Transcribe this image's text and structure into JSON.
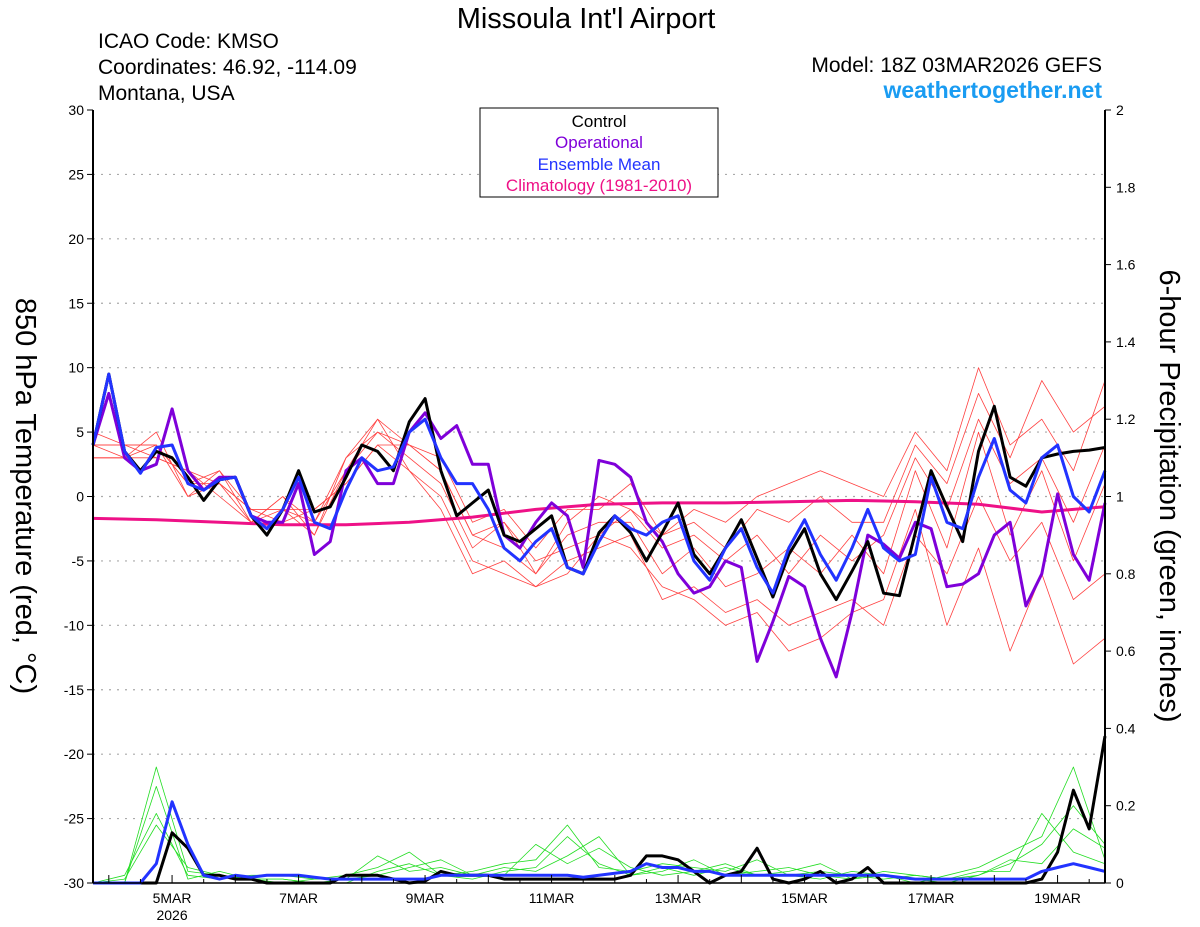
{
  "header": {
    "title": "Missoula Int'l Airport",
    "icao": "ICAO Code: KMSO",
    "coords": "Coordinates: 46.92, -114.09",
    "region": "Montana, USA",
    "model": "Model: 18Z 03MAR2026 GEFS",
    "site": "weathertogether.net"
  },
  "colors": {
    "control": "#000000",
    "operational": "#7f00d9",
    "mean": "#2233ff",
    "climatology": "#ee1187",
    "members_temp": "#ff4040",
    "members_precip": "#22dd22",
    "site": "#1a9cf2"
  },
  "chart_data": {
    "type": "line",
    "title": "Missoula Int'l Airport",
    "ylabel": "850 hPa Temperature (red, °C)",
    "ylabel_right": "6-hour Precipitation (green, inches)",
    "ylim": [
      -30,
      30
    ],
    "ylim_right": [
      0,
      2
    ],
    "yticks": [
      "30",
      "25",
      "20",
      "15",
      "10",
      "5",
      "0",
      "-5",
      "-10",
      "-15",
      "-20",
      "-25",
      "-30"
    ],
    "yticks_right": [
      "2",
      "1.8",
      "1.6",
      "1.4",
      "1.2",
      "1",
      "0.8",
      "0.6",
      "0.4",
      "0.2",
      "0"
    ],
    "x_start_hours_after_03MAR_00Z": 18,
    "x_range_hours": [
      18,
      402
    ],
    "xticks": [
      {
        "label": "5MAR",
        "hour": 48,
        "sub": "2026"
      },
      {
        "label": "7MAR",
        "hour": 96
      },
      {
        "label": "9MAR",
        "hour": 144
      },
      {
        "label": "11MAR",
        "hour": 192
      },
      {
        "label": "13MAR",
        "hour": 240
      },
      {
        "label": "15MAR",
        "hour": 288
      },
      {
        "label": "17MAR",
        "hour": 336
      },
      {
        "label": "19MAR",
        "hour": 384
      }
    ],
    "legend": {
      "placement": "top-center",
      "entries": [
        "Control",
        "Operational",
        "Ensemble Mean",
        "Climatology (1981-2010)"
      ]
    },
    "temperature_series": [
      {
        "name": "Control",
        "step_hours": 6,
        "values": [
          4,
          9.5,
          3.5,
          2,
          3.5,
          3,
          1.5,
          -0.3,
          1.3,
          1.5,
          -1.5,
          -3,
          -1,
          2,
          -1.2,
          -0.8,
          1.5,
          4,
          3.5,
          2,
          5.8,
          7.6,
          2,
          -1.5,
          -0.5,
          0.5,
          -3,
          -3.5,
          -2.5,
          -1.5,
          -5.5,
          -6,
          -2.8,
          -1.5,
          -2.8,
          -5,
          -2.8,
          -0.5,
          -4.5,
          -6,
          -4,
          -1.8,
          -4.8,
          -7.8,
          -4.5,
          -2.5,
          -6,
          -8,
          -5.8,
          -3.5,
          -7.5,
          -7.7,
          -2.8,
          2,
          -0.8,
          -3.5,
          3.5,
          7,
          1.5,
          0.8,
          3,
          3.3,
          3.5,
          3.6,
          3.8
        ]
      },
      {
        "name": "Operational",
        "step_hours": 6,
        "values": [
          4,
          8,
          3,
          2,
          2.5,
          6.8,
          2,
          0.5,
          1.5,
          1.5,
          -1.5,
          -2,
          -2,
          1,
          -4.5,
          -3.5,
          2,
          3,
          1,
          1,
          5,
          6.5,
          4.5,
          5.5,
          2.5,
          2.5,
          -3,
          -4,
          -2,
          -0.5,
          -1.5,
          -5.5,
          2.8,
          2.5,
          1.5,
          -2,
          -3.5,
          -6,
          -7.5,
          -7,
          -5,
          -5.5,
          -12.8,
          -9.7,
          -6.2,
          -7,
          -11,
          -14,
          -9,
          -3,
          -3.7,
          -4.8,
          -2,
          -2.5,
          -7,
          -6.8,
          -6,
          -3,
          -2,
          -8.5,
          -6,
          0.2,
          -4.5,
          -6.5,
          -0.5
        ]
      },
      {
        "name": "Ensemble Mean",
        "step_hours": 6,
        "values": [
          4,
          9.5,
          3.5,
          1.8,
          3.8,
          4,
          1,
          0.5,
          1.3,
          1.5,
          -1.5,
          -2.5,
          -1,
          1.5,
          -2,
          -2.5,
          0.5,
          3,
          2,
          2.3,
          5,
          6,
          3,
          1,
          1,
          -1,
          -4,
          -5,
          -3.5,
          -2.5,
          -5.5,
          -6,
          -3.5,
          -1.5,
          -2.5,
          -3,
          -2,
          -1.5,
          -5,
          -6.5,
          -4,
          -2.5,
          -5.5,
          -7.5,
          -4,
          -1.8,
          -4.5,
          -6.5,
          -4,
          -1,
          -4,
          -5,
          -4.5,
          1.5,
          -2,
          -2.5,
          1.5,
          4.5,
          0.5,
          -0.5,
          3,
          4,
          0,
          -1.2,
          2
        ]
      },
      {
        "name": "Climatology (1981-2010)",
        "step_hours": 24,
        "values": [
          -1.7,
          -1.8,
          -2,
          -2.2,
          -2.2,
          -2,
          -1.6,
          -1,
          -0.6,
          -0.5,
          -0.5,
          -0.4,
          -0.3,
          -0.4,
          -0.6,
          -1.2,
          -0.8
        ]
      }
    ],
    "temperature_members": [
      {
        "name": "member-1",
        "step_hours": 12,
        "values": [
          5,
          4,
          3,
          2,
          0,
          -2,
          0,
          -3,
          3,
          6,
          4,
          2,
          -3,
          -2,
          -6,
          -2,
          0,
          -1,
          -3,
          -2,
          -4,
          -1,
          -2,
          0,
          -2,
          -2,
          4,
          1,
          8,
          3,
          9,
          5,
          7
        ]
      },
      {
        "name": "member-2",
        "step_hours": 12,
        "values": [
          3,
          3,
          5,
          0,
          1,
          -1,
          -2,
          -1,
          1,
          4,
          2,
          -1,
          -6,
          -5,
          -7,
          -5,
          -4,
          -3,
          -8,
          -7,
          -9,
          -8,
          -10,
          -9,
          -8,
          -10,
          -3,
          -6,
          0,
          -5,
          -2,
          -8,
          -6
        ]
      },
      {
        "name": "member-3",
        "step_hours": 12,
        "values": [
          4,
          4,
          4,
          1,
          2,
          -2,
          -1,
          -2,
          2,
          5,
          4,
          3,
          -2,
          -1,
          -4,
          -1,
          -1,
          1,
          -3,
          -1,
          -2,
          0,
          1,
          2,
          1,
          0,
          5,
          2,
          10,
          4,
          6,
          2,
          9
        ]
      },
      {
        "name": "member-4",
        "step_hours": 12,
        "values": [
          4,
          3,
          3,
          2,
          1,
          -1,
          -1,
          -3,
          2,
          6,
          2,
          0,
          -5,
          -6,
          -7,
          -6,
          -3,
          -4,
          -7,
          -8,
          -10,
          -9,
          -12,
          -11,
          -9,
          -8,
          -1,
          -10,
          -4,
          -12,
          -6,
          -13,
          -11
        ]
      },
      {
        "name": "member-5",
        "step_hours": 12,
        "values": [
          4,
          4,
          4,
          1,
          1,
          -2,
          0,
          -2,
          3,
          5,
          3,
          1,
          -4,
          -2,
          -5,
          -4,
          -3,
          -1,
          -4,
          -3,
          -5,
          -3,
          -6,
          -3,
          -5,
          -3,
          3,
          -1,
          6,
          1,
          3,
          -2,
          4
        ]
      },
      {
        "name": "member-6",
        "step_hours": 12,
        "values": [
          3,
          3,
          4,
          0,
          2,
          -1,
          -1,
          -1,
          1,
          4,
          4,
          2,
          -3,
          -4,
          -6,
          -3,
          -2,
          -2,
          -6,
          -4,
          -7,
          -6,
          -4,
          -6,
          -3,
          -6,
          2,
          -4,
          5,
          -3,
          2,
          -5,
          1
        ]
      }
    ],
    "precip_series": [
      {
        "name": "Control",
        "step_hours": 6,
        "values": [
          0,
          0,
          0,
          0,
          0,
          0.13,
          0.09,
          0.02,
          0.02,
          0.01,
          0.01,
          0,
          0,
          0,
          0,
          0,
          0.02,
          0.02,
          0.02,
          0.01,
          0,
          0.005,
          0.03,
          0.02,
          0.02,
          0.02,
          0.01,
          0.01,
          0.01,
          0.01,
          0.01,
          0.01,
          0.01,
          0.01,
          0.02,
          0.07,
          0.07,
          0.06,
          0.03,
          0,
          0.02,
          0.03,
          0.09,
          0.01,
          0,
          0.01,
          0.03,
          0,
          0.01,
          0.04,
          0,
          0,
          0,
          0,
          0,
          0,
          0,
          0,
          0,
          0,
          0.01,
          0.08,
          0.24,
          0.14,
          0.38
        ]
      },
      {
        "name": "Ensemble Mean",
        "step_hours": 6,
        "values": [
          0,
          0,
          0,
          0,
          0.05,
          0.21,
          0.1,
          0.02,
          0.01,
          0.02,
          0.015,
          0.02,
          0.02,
          0.02,
          0.015,
          0.01,
          0.01,
          0.01,
          0.01,
          0.01,
          0.01,
          0.01,
          0.02,
          0.02,
          0.02,
          0.02,
          0.02,
          0.02,
          0.02,
          0.02,
          0.02,
          0.015,
          0.02,
          0.025,
          0.03,
          0.05,
          0.04,
          0.04,
          0.03,
          0.03,
          0.02,
          0.02,
          0.02,
          0.02,
          0.02,
          0.02,
          0.02,
          0.02,
          0.02,
          0.02,
          0.02,
          0.015,
          0.01,
          0.01,
          0.01,
          0.01,
          0.01,
          0.01,
          0.01,
          0.01,
          0.03,
          0.04,
          0.05,
          0.04,
          0.03
        ]
      }
    ],
    "precip_members": [
      {
        "name": "member-1",
        "step_hours": 12,
        "values": [
          0,
          0,
          0.3,
          0.03,
          0.02,
          0.01,
          0.01,
          0,
          0,
          0.03,
          0.05,
          0.02,
          0.01,
          0.03,
          0.04,
          0.12,
          0.05,
          0.02,
          0.03,
          0.06,
          0.02,
          0.03,
          0.04,
          0.02,
          0.01,
          0.02,
          0.01,
          0,
          0.02,
          0.05,
          0.1,
          0.2,
          0.1
        ]
      },
      {
        "name": "member-2",
        "step_hours": 12,
        "values": [
          0,
          0.02,
          0.18,
          0.02,
          0.01,
          0.02,
          0.02,
          0.01,
          0.01,
          0.07,
          0.03,
          0.04,
          0.02,
          0.02,
          0.1,
          0.05,
          0.09,
          0.04,
          0.02,
          0.03,
          0.05,
          0.02,
          0.02,
          0.03,
          0.02,
          0.01,
          0.02,
          0.01,
          0.03,
          0.03,
          0.18,
          0.08,
          0.05
        ]
      },
      {
        "name": "member-3",
        "step_hours": 12,
        "values": [
          0,
          0,
          0.25,
          0.01,
          0.03,
          0.01,
          0,
          0.01,
          0.02,
          0.04,
          0.08,
          0.02,
          0.03,
          0.05,
          0.06,
          0.15,
          0.04,
          0.03,
          0.05,
          0.04,
          0.03,
          0.06,
          0.02,
          0.01,
          0.03,
          0.02,
          0,
          0.02,
          0.04,
          0.08,
          0.12,
          0.3,
          0.06
        ]
      },
      {
        "name": "member-4",
        "step_hours": 12,
        "values": [
          0,
          0.01,
          0.15,
          0.04,
          0.02,
          0.01,
          0.01,
          0,
          0.01,
          0.02,
          0.04,
          0.06,
          0.02,
          0.04,
          0.03,
          0.07,
          0.12,
          0.02,
          0.04,
          0.02,
          0.04,
          0.02,
          0.03,
          0.05,
          0.01,
          0.03,
          0.02,
          0.01,
          0.02,
          0.06,
          0.05,
          0.14,
          0.09
        ]
      }
    ]
  }
}
